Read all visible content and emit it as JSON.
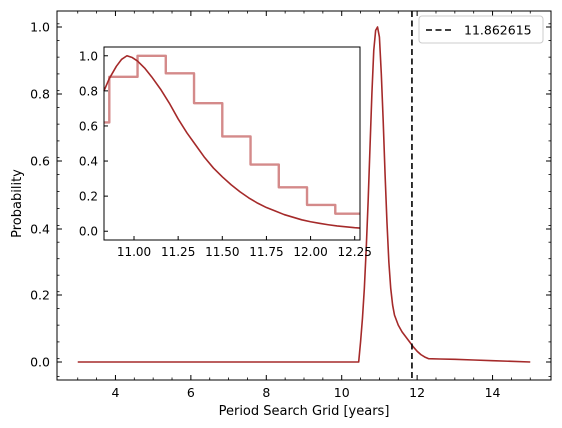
{
  "chart_data": [
    {
      "type": "line",
      "panel": "main",
      "xlabel": "Period Search Grid [years]",
      "ylabel": "Probability",
      "xlim": [
        2.45,
        15.55
      ],
      "ylim": [
        -0.05,
        1.05
      ],
      "y_scale": "piecewise-linear: 0–0.4 expanded, 0.4–1.0 compressed",
      "xticks": [
        4,
        6,
        8,
        10,
        12,
        14
      ],
      "xtick_labels": [
        "4",
        "6",
        "8",
        "10",
        "12",
        "14"
      ],
      "yticks": [
        0.0,
        0.2,
        0.4,
        0.6,
        0.8,
        1.0
      ],
      "ytick_labels": [
        "0.0",
        "0.2",
        "0.4",
        "0.6",
        "0.8",
        "1.0"
      ],
      "grid": false,
      "legend": {
        "placement": "top-right",
        "entries": [
          {
            "label": "11.862615",
            "style": "dashed",
            "color": "#000000"
          }
        ]
      },
      "vline": {
        "x": 11.862615,
        "color": "#000000",
        "style": "dashed"
      },
      "series": [
        {
          "color": "#a52a2a",
          "x": [
            3.0,
            10.45,
            10.5,
            10.55,
            10.6,
            10.65,
            10.7,
            10.75,
            10.8,
            10.85,
            10.9,
            10.95,
            11.0,
            11.05,
            11.1,
            11.15,
            11.2,
            11.25,
            11.3,
            11.35,
            11.4,
            11.5,
            11.6,
            11.7,
            11.8,
            11.9,
            12.0,
            12.1,
            12.2,
            12.3,
            12.6,
            13.0,
            13.5,
            14.0,
            14.5,
            15.0
          ],
          "y": [
            0.0,
            0.0,
            0.06,
            0.13,
            0.22,
            0.34,
            0.48,
            0.64,
            0.8,
            0.93,
            0.99,
            1.0,
            0.97,
            0.86,
            0.72,
            0.56,
            0.42,
            0.3,
            0.22,
            0.17,
            0.14,
            0.11,
            0.09,
            0.075,
            0.06,
            0.045,
            0.032,
            0.022,
            0.015,
            0.01,
            0.009,
            0.008,
            0.006,
            0.004,
            0.002,
            0.0
          ]
        }
      ]
    },
    {
      "type": "line",
      "panel": "inset",
      "xlim": [
        10.83,
        12.28
      ],
      "ylim": [
        -0.05,
        1.05
      ],
      "xticks": [
        11.0,
        11.25,
        11.5,
        11.75,
        12.0,
        12.25
      ],
      "xtick_labels": [
        "11.00",
        "11.25",
        "11.50",
        "11.75",
        "12.00",
        "12.25"
      ],
      "yticks": [
        0.0,
        0.2,
        0.4,
        0.6,
        0.8,
        1.0
      ],
      "ytick_labels": [
        "0.0",
        "0.2",
        "0.4",
        "0.6",
        "0.8",
        "1.0"
      ],
      "grid": false,
      "series": [
        {
          "style": "step",
          "color": "#d48a8a",
          "x": [
            10.83,
            10.86,
            10.86,
            11.02,
            11.02,
            11.18,
            11.18,
            11.34,
            11.34,
            11.5,
            11.5,
            11.66,
            11.66,
            11.82,
            11.82,
            11.98,
            11.98,
            12.14,
            12.14,
            12.28
          ],
          "y": [
            0.62,
            0.62,
            0.88,
            0.88,
            1.0,
            1.0,
            0.9,
            0.9,
            0.73,
            0.73,
            0.54,
            0.54,
            0.38,
            0.38,
            0.25,
            0.25,
            0.15,
            0.15,
            0.1,
            0.1
          ]
        },
        {
          "style": "smooth",
          "color": "#a52a2a",
          "x": [
            10.83,
            10.86,
            10.9,
            10.93,
            10.96,
            10.99,
            11.02,
            11.06,
            11.1,
            11.15,
            11.2,
            11.25,
            11.3,
            11.35,
            11.4,
            11.45,
            11.5,
            11.55,
            11.6,
            11.65,
            11.7,
            11.75,
            11.8,
            11.85,
            11.9,
            11.95,
            12.0,
            12.05,
            12.1,
            12.15,
            12.2,
            12.25,
            12.28
          ],
          "y": [
            0.8,
            0.87,
            0.94,
            0.98,
            1.0,
            0.99,
            0.97,
            0.93,
            0.88,
            0.81,
            0.73,
            0.64,
            0.56,
            0.49,
            0.42,
            0.36,
            0.31,
            0.265,
            0.225,
            0.19,
            0.16,
            0.135,
            0.115,
            0.095,
            0.08,
            0.065,
            0.054,
            0.045,
            0.037,
            0.03,
            0.025,
            0.02,
            0.018
          ]
        }
      ]
    }
  ]
}
